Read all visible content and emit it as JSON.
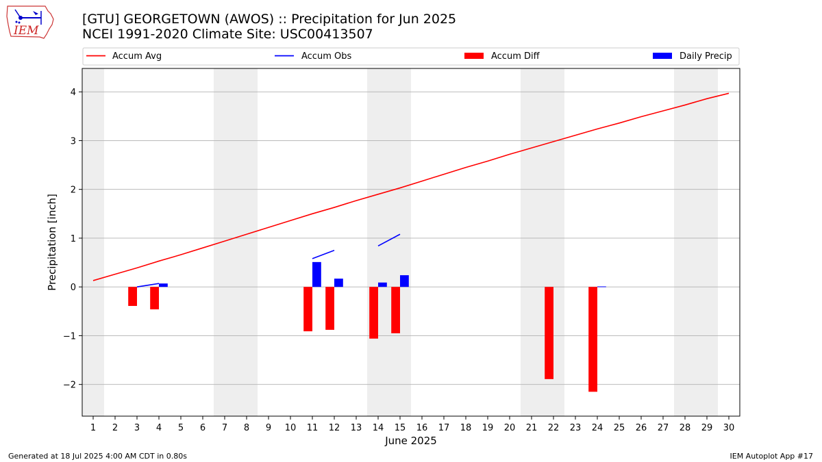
{
  "header": {
    "title_line1": "[GTU] GEORGETOWN (AWOS) :: Precipitation for Jun 2025",
    "title_line2": "NCEI 1991-2020 Climate Site: USC00413507",
    "logo_text": "IEM"
  },
  "footer": {
    "left": "Generated at 18 Jul 2025 4:00 AM CDT in 0.80s",
    "right": "IEM Autoplot App #17"
  },
  "colors": {
    "avg": "#ff0000",
    "obs": "#0000ff",
    "diff": "#ff0000",
    "daily": "#0000ff",
    "weekend": "#eeeeee",
    "grid": "#b0b0b0"
  },
  "chart_data": {
    "type": "bar",
    "xlabel": "June 2025",
    "ylabel": "Precipitation [inch]",
    "xlim": [
      0.5,
      30.5
    ],
    "ylim": [
      -2.65,
      4.48
    ],
    "yticks": [
      -2,
      -1,
      0,
      1,
      2,
      3,
      4
    ],
    "xticks": [
      1,
      2,
      3,
      4,
      5,
      6,
      7,
      8,
      9,
      10,
      11,
      12,
      13,
      14,
      15,
      16,
      17,
      18,
      19,
      20,
      21,
      22,
      23,
      24,
      25,
      26,
      27,
      28,
      29,
      30
    ],
    "grid": "y",
    "legend": {
      "placement": "top",
      "entries": [
        "Accum Avg",
        "Accum Obs",
        "Accum Diff",
        "Daily Precip"
      ]
    },
    "weekend_days": [
      1,
      7,
      8,
      14,
      15,
      21,
      22,
      28,
      29
    ],
    "series": [
      {
        "name": "Accum Avg",
        "kind": "line",
        "x": [
          1,
          2,
          3,
          4,
          5,
          6,
          7,
          8,
          9,
          10,
          11,
          12,
          13,
          14,
          15,
          16,
          17,
          18,
          19,
          20,
          21,
          22,
          23,
          24,
          25,
          26,
          27,
          28,
          29,
          30
        ],
        "values": [
          0.13,
          0.26,
          0.39,
          0.53,
          0.66,
          0.8,
          0.94,
          1.08,
          1.22,
          1.36,
          1.5,
          1.63,
          1.77,
          1.9,
          2.03,
          2.17,
          2.31,
          2.45,
          2.58,
          2.72,
          2.85,
          2.98,
          3.11,
          3.24,
          3.36,
          3.49,
          3.61,
          3.73,
          3.86,
          3.97
        ]
      },
      {
        "name": "Accum Obs",
        "kind": "line-segments",
        "segments": [
          {
            "x": [
              3,
              4
            ],
            "values": [
              0.0,
              0.07
            ]
          },
          {
            "x": [
              11,
              12
            ],
            "values": [
              0.58,
              0.75
            ]
          },
          {
            "x": [
              14,
              15
            ],
            "values": [
              0.84,
              1.08
            ]
          }
        ]
      },
      {
        "name": "Accum Diff",
        "kind": "bar",
        "x": [
          3,
          4,
          11,
          12,
          14,
          15,
          22,
          24
        ],
        "values": [
          -0.39,
          -0.46,
          -0.91,
          -0.88,
          -1.06,
          -0.95,
          -1.89,
          -2.15
        ]
      },
      {
        "name": "Daily Precip",
        "kind": "bar",
        "x": [
          4,
          11,
          12,
          14,
          15,
          24
        ],
        "values": [
          0.07,
          0.51,
          0.17,
          0.09,
          0.24,
          0.01
        ]
      }
    ]
  }
}
